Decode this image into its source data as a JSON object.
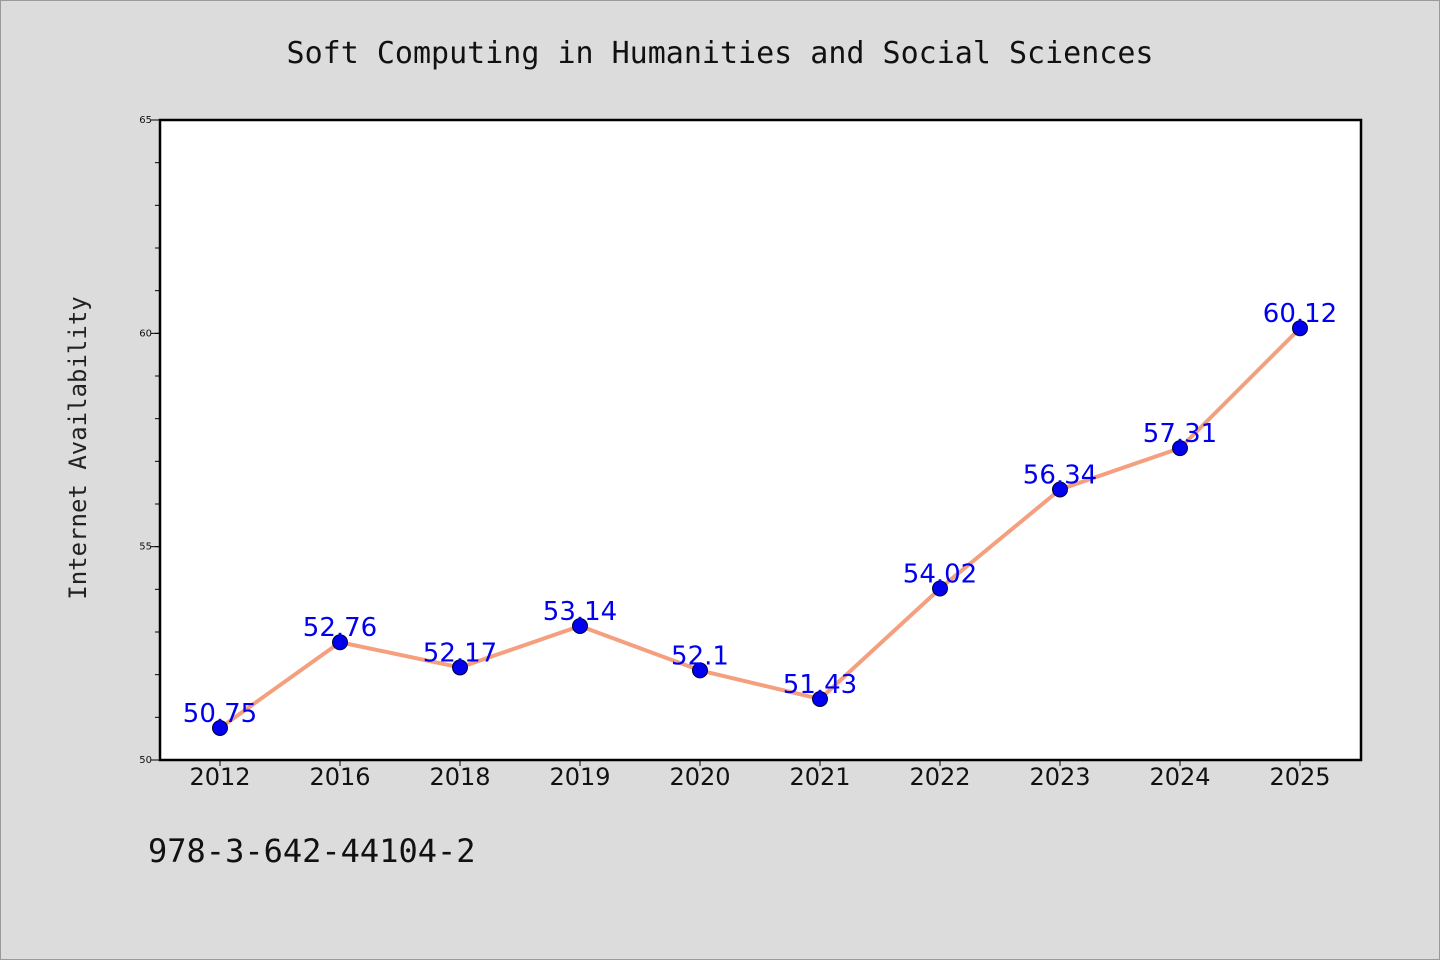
{
  "chart_data": {
    "type": "line",
    "title": "Soft Computing in Humanities and Social Sciences",
    "ylabel": "Internet Availability",
    "xlabel": "",
    "categories": [
      "2012",
      "2016",
      "2018",
      "2019",
      "2020",
      "2021",
      "2022",
      "2023",
      "2024",
      "2025"
    ],
    "values": [
      50.75,
      52.76,
      52.17,
      53.14,
      52.1,
      51.43,
      54.02,
      56.34,
      57.31,
      60.12
    ],
    "data_labels": [
      "50.75",
      "52.76",
      "52.17",
      "53.14",
      "52.1",
      "51.43",
      "54.02",
      "56.34",
      "57.31",
      "60.12"
    ],
    "ylim": [
      50,
      65
    ],
    "y_ticks": [
      "50",
      "55",
      "60",
      "65"
    ],
    "y_tick_values": [
      50,
      55,
      60,
      65
    ],
    "y_minor_step": 1,
    "grid": false,
    "line_color": "#f4a07f",
    "marker_color": "#0000ee",
    "label_color": "#0000ee"
  },
  "footer": {
    "code": "978-3-642-44104-2"
  }
}
